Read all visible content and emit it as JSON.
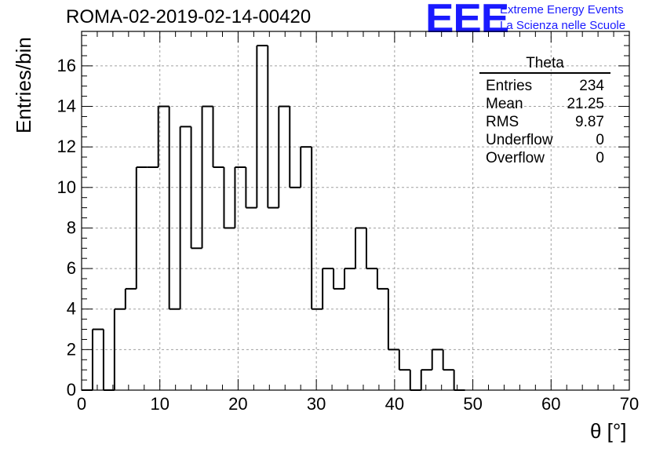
{
  "title": "ROMA-02-2019-02-14-00420",
  "logo": {
    "mark": "EEE",
    "line1": "Extreme Energy Events",
    "line2": "La Scienza nelle Scuole",
    "color": "#1a1aff"
  },
  "stats": {
    "name": "Theta",
    "rows": [
      {
        "label": "Entries",
        "value": "234"
      },
      {
        "label": "Mean",
        "value": "21.25"
      },
      {
        "label": "RMS",
        "value": "9.87"
      },
      {
        "label": "Underflow",
        "value": "0"
      },
      {
        "label": "Overflow",
        "value": "0"
      }
    ]
  },
  "chart_data": {
    "type": "bar",
    "style": "step-histogram",
    "title": "ROMA-02-2019-02-14-00420",
    "xlabel": "θ [°]",
    "ylabel": "Entries/bin",
    "xlim": [
      0,
      70
    ],
    "ylim": [
      0,
      17.7
    ],
    "bin_width": 1.4,
    "x_ticks": [
      0,
      10,
      20,
      30,
      40,
      50,
      60,
      70
    ],
    "y_ticks": [
      0,
      2,
      4,
      6,
      8,
      10,
      12,
      14,
      16
    ],
    "grid": true,
    "bins": [
      {
        "x": 0.0,
        "value": 0
      },
      {
        "x": 1.4,
        "value": 3
      },
      {
        "x": 2.8,
        "value": 0
      },
      {
        "x": 4.2,
        "value": 4
      },
      {
        "x": 5.6,
        "value": 5
      },
      {
        "x": 7.0,
        "value": 11
      },
      {
        "x": 8.4,
        "value": 11
      },
      {
        "x": 9.8,
        "value": 14
      },
      {
        "x": 11.2,
        "value": 4
      },
      {
        "x": 12.6,
        "value": 13
      },
      {
        "x": 14.0,
        "value": 7
      },
      {
        "x": 15.4,
        "value": 14
      },
      {
        "x": 16.8,
        "value": 11
      },
      {
        "x": 18.2,
        "value": 8
      },
      {
        "x": 19.6,
        "value": 11
      },
      {
        "x": 21.0,
        "value": 9
      },
      {
        "x": 22.4,
        "value": 17
      },
      {
        "x": 23.8,
        "value": 9
      },
      {
        "x": 25.2,
        "value": 14
      },
      {
        "x": 26.6,
        "value": 10
      },
      {
        "x": 28.0,
        "value": 12
      },
      {
        "x": 29.4,
        "value": 4
      },
      {
        "x": 30.8,
        "value": 6
      },
      {
        "x": 32.2,
        "value": 5
      },
      {
        "x": 33.6,
        "value": 6
      },
      {
        "x": 35.0,
        "value": 8
      },
      {
        "x": 36.4,
        "value": 6
      },
      {
        "x": 37.8,
        "value": 5
      },
      {
        "x": 39.2,
        "value": 2
      },
      {
        "x": 40.6,
        "value": 1
      },
      {
        "x": 42.0,
        "value": 0
      },
      {
        "x": 43.4,
        "value": 1
      },
      {
        "x": 44.8,
        "value": 2
      },
      {
        "x": 46.2,
        "value": 1
      },
      {
        "x": 47.6,
        "value": 0
      }
    ],
    "line_color": "#000000",
    "grid_color": "#a0a0a0"
  }
}
